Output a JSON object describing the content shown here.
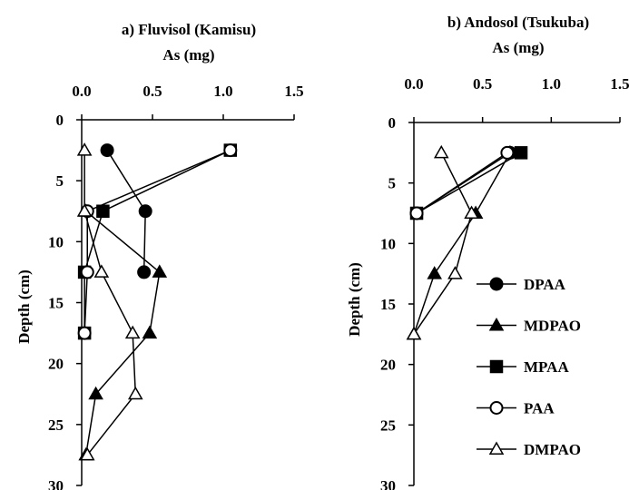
{
  "chart_data": [
    {
      "type": "line",
      "title": "a) Fluvisol (Kamisu)",
      "xlabel": "As   (mg)",
      "ylabel": "Depth  (cm)",
      "xlim": [
        0,
        1.5
      ],
      "ylim": [
        0,
        30
      ],
      "x_ticks": [
        "0.0",
        "0.5",
        "1.0",
        "1.5"
      ],
      "y_ticks": [
        "0",
        "5",
        "10",
        "15",
        "20",
        "25",
        "30"
      ],
      "series": [
        {
          "name": "DPAA",
          "marker": "circle-filled",
          "points": [
            [
              0.18,
              2.5
            ],
            [
              0.45,
              7.5
            ],
            [
              0.44,
              12.5
            ]
          ]
        },
        {
          "name": "MDPAO",
          "marker": "triangle-filled",
          "points": [
            [
              0.03,
              7.5
            ],
            [
              0.55,
              12.5
            ],
            [
              0.48,
              17.5
            ],
            [
              0.1,
              22.5
            ],
            [
              0.03,
              27.5
            ]
          ]
        },
        {
          "name": "MPAA",
          "marker": "square-filled",
          "points": [
            [
              1.05,
              2.5
            ],
            [
              0.15,
              7.5
            ],
            [
              0.02,
              12.5
            ],
            [
              0.02,
              17.5
            ]
          ]
        },
        {
          "name": "PAA",
          "marker": "circle-open",
          "points": [
            [
              1.05,
              2.5
            ],
            [
              0.04,
              7.5
            ],
            [
              0.04,
              12.5
            ],
            [
              0.02,
              17.5
            ]
          ]
        },
        {
          "name": "DMPAO",
          "marker": "triangle-open",
          "points": [
            [
              0.02,
              2.5
            ],
            [
              0.02,
              7.5
            ],
            [
              0.14,
              12.5
            ],
            [
              0.36,
              17.5
            ],
            [
              0.38,
              22.5
            ],
            [
              0.04,
              27.5
            ]
          ]
        }
      ]
    },
    {
      "type": "line",
      "title": "b) Andosol (Tsukuba)",
      "xlabel": "As   (mg)",
      "ylabel": "Depth  (cm)",
      "xlim": [
        0,
        1.5
      ],
      "ylim": [
        0,
        30
      ],
      "x_ticks": [
        "0.0",
        "0.5",
        "1.0",
        "1.5"
      ],
      "y_ticks": [
        "0",
        "5",
        "10",
        "15",
        "20",
        "25",
        "30"
      ],
      "legend": "right",
      "series": [
        {
          "name": "DPAA",
          "marker": "circle-filled",
          "points": [
            [
              0.7,
              2.5
            ],
            [
              0.02,
              7.5
            ]
          ]
        },
        {
          "name": "MDPAO",
          "marker": "triangle-filled",
          "points": [
            [
              0.7,
              2.5
            ],
            [
              0.45,
              7.5
            ],
            [
              0.15,
              12.5
            ],
            [
              0.0,
              17.5
            ]
          ]
        },
        {
          "name": "MPAA",
          "marker": "square-filled",
          "points": [
            [
              0.78,
              2.5
            ],
            [
              0.02,
              7.5
            ]
          ]
        },
        {
          "name": "PAA",
          "marker": "circle-open",
          "points": [
            [
              0.68,
              2.5
            ],
            [
              0.02,
              7.5
            ]
          ]
        },
        {
          "name": "DMPAO",
          "marker": "triangle-open",
          "points": [
            [
              0.2,
              2.5
            ],
            [
              0.42,
              7.5
            ],
            [
              0.3,
              12.5
            ],
            [
              0.0,
              17.5
            ]
          ]
        }
      ]
    }
  ]
}
